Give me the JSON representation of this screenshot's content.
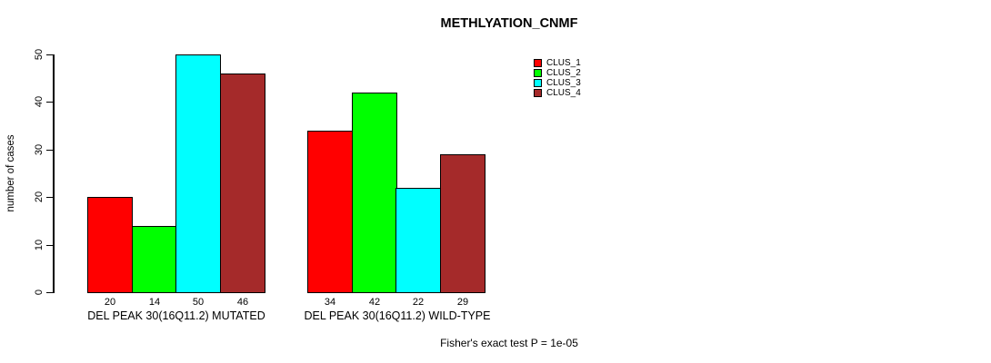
{
  "title": "METHLYATION_CNMF",
  "footer": "Fisher's exact test P = 1e-05",
  "chart_data": {
    "type": "bar",
    "title": "METHLYATION_CNMF",
    "xlabel": "",
    "ylabel": "number of cases",
    "ylim": [
      0,
      50
    ],
    "yticks": [
      0,
      10,
      20,
      30,
      40,
      50
    ],
    "grid": false,
    "legend_position": "top-right",
    "bar_labels": true,
    "categories": [
      "DEL PEAK 30(16Q11.2) MUTATED",
      "DEL PEAK 30(16Q11.2) WILD-TYPE"
    ],
    "series": [
      {
        "name": "CLUS_1",
        "color": "#FF0000",
        "values": [
          20,
          34
        ]
      },
      {
        "name": "CLUS_2",
        "color": "#00FF00",
        "values": [
          14,
          42
        ]
      },
      {
        "name": "CLUS_3",
        "color": "#00FFFF",
        "values": [
          50,
          22
        ]
      },
      {
        "name": "CLUS_4",
        "color": "#A52A2A",
        "values": [
          46,
          29
        ]
      }
    ],
    "annotation": "Fisher's exact test P = 1e-05"
  }
}
